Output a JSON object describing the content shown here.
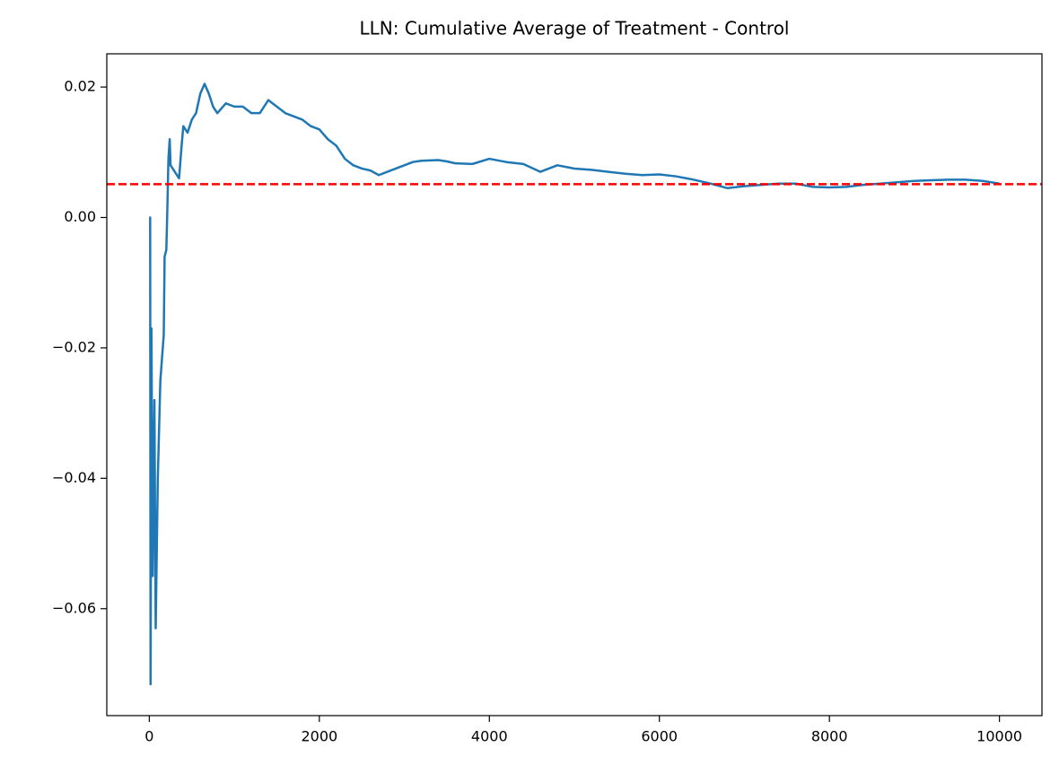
{
  "chart_data": {
    "type": "line",
    "title": "LLN: Cumulative Average of Treatment - Control",
    "x": [
      0,
      10,
      15,
      25,
      40,
      60,
      75,
      100,
      130,
      170,
      180,
      200,
      210,
      225,
      240,
      250,
      350,
      380,
      400,
      450,
      500,
      550,
      600,
      650,
      700,
      750,
      800,
      900,
      1000,
      1100,
      1200,
      1300,
      1400,
      1500,
      1600,
      1700,
      1800,
      1900,
      2000,
      2100,
      2200,
      2300,
      2400,
      2500,
      2600,
      2700,
      2800,
      2900,
      3000,
      3100,
      3200,
      3400,
      3500,
      3600,
      3800,
      4000,
      4200,
      4400,
      4600,
      4700,
      4800,
      5000,
      5200,
      5400,
      5600,
      5800,
      6000,
      6200,
      6400,
      6600,
      6800,
      7000,
      7200,
      7400,
      7600,
      7800,
      8000,
      8200,
      8400,
      8600,
      8800,
      9000,
      9200,
      9400,
      9600,
      9800,
      10000
    ],
    "series": [
      {
        "color": "#1f77b4",
        "values": [
          0,
          0,
          -0.0716,
          -0.017,
          -0.055,
          -0.028,
          -0.063,
          -0.04,
          -0.025,
          -0.018,
          -0.006,
          -0.005,
          0,
          0.009,
          0.012,
          0.008,
          0.006,
          0.011,
          0.014,
          0.013,
          0.015,
          0.016,
          0.019,
          0.0205,
          0.019,
          0.017,
          0.016,
          0.0175,
          0.017,
          0.017,
          0.016,
          0.016,
          0.018,
          0.017,
          0.016,
          0.0155,
          0.015,
          0.014,
          0.0135,
          0.012,
          0.011,
          0.009,
          0.008,
          0.0075,
          0.0072,
          0.0065,
          0.007,
          0.0075,
          0.008,
          0.0085,
          0.0087,
          0.0088,
          0.0086,
          0.0083,
          0.0082,
          0.009,
          0.0085,
          0.0082,
          0.007,
          0.0075,
          0.008,
          0.0075,
          0.0073,
          0.007,
          0.0067,
          0.0065,
          0.0066,
          0.0063,
          0.0058,
          0.0052,
          0.0045,
          0.0048,
          0.005,
          0.0052,
          0.0052,
          0.0047,
          0.0046,
          0.0047,
          0.005,
          0.0052,
          0.0054,
          0.0056,
          0.0057,
          0.0058,
          0.0058,
          0.0056,
          0.0052
        ]
      }
    ],
    "hline": {
      "value": 0.0051,
      "color": "#ff0000"
    },
    "xlim": [
      -500,
      10500
    ],
    "xticks": [
      0,
      2000,
      4000,
      6000,
      8000,
      10000
    ],
    "ylim": [
      -0.0764,
      0.0251
    ],
    "yticks": [
      {
        "value": -0.06,
        "label": "−0.06"
      },
      {
        "value": -0.04,
        "label": "−0.04"
      },
      {
        "value": -0.02,
        "label": "−0.02"
      },
      {
        "value": 0,
        "label": "0.00"
      },
      0.02
    ]
  }
}
